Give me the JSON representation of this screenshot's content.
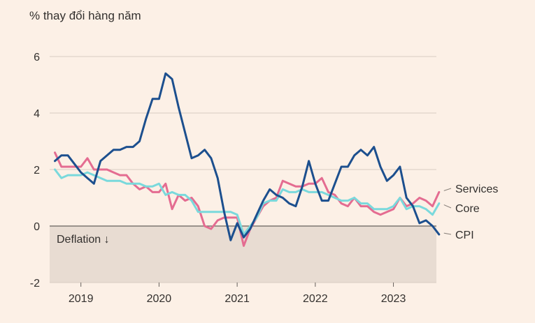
{
  "chart_data": {
    "type": "line",
    "ylabel": "% thay đổi hàng năm",
    "ylim": [
      -2,
      6
    ],
    "yticks": [
      {
        "value": 6,
        "label": "6"
      },
      {
        "value": 4,
        "label": "4"
      },
      {
        "value": 2,
        "label": "2"
      },
      {
        "value": 0,
        "label": "0"
      },
      {
        "value": -2,
        "label": "-2"
      }
    ],
    "xlim": [
      2018.6,
      2023.55
    ],
    "xticks": [
      {
        "value": 2019,
        "label": "2019"
      },
      {
        "value": 2020,
        "label": "2020"
      },
      {
        "value": 2021,
        "label": "2021"
      },
      {
        "value": 2022,
        "label": "2022"
      },
      {
        "value": 2023,
        "label": "2023"
      }
    ],
    "annotation": "Deflation ↓",
    "shaded_region": {
      "from": -2,
      "to": 0,
      "color": "#e8dcd2"
    },
    "start": 2018.667,
    "step": 0.0833333,
    "series": [
      {
        "name": "Services",
        "color": "#e46c91",
        "values": [
          2.6,
          2.1,
          2.1,
          2.1,
          2.1,
          2.4,
          2.0,
          2.0,
          2.0,
          1.9,
          1.8,
          1.8,
          1.5,
          1.3,
          1.4,
          1.2,
          1.2,
          1.5,
          0.6,
          1.1,
          0.9,
          1.0,
          0.7,
          0.0,
          -0.1,
          0.2,
          0.3,
          0.3,
          0.3,
          -0.7,
          -0.1,
          0.3,
          0.7,
          0.9,
          1.0,
          1.6,
          1.5,
          1.4,
          1.4,
          1.5,
          1.5,
          1.7,
          1.2,
          1.1,
          0.8,
          0.7,
          1.0,
          0.7,
          0.7,
          0.5,
          0.4,
          0.5,
          0.6,
          1.0,
          0.7,
          0.8,
          1.0,
          0.9,
          0.7,
          1.2
        ]
      },
      {
        "name": "Core",
        "color": "#7ad9dc",
        "values": [
          2.0,
          1.7,
          1.8,
          1.8,
          1.8,
          1.9,
          1.8,
          1.7,
          1.6,
          1.6,
          1.6,
          1.5,
          1.5,
          1.5,
          1.4,
          1.4,
          1.5,
          1.1,
          1.2,
          1.1,
          1.1,
          0.9,
          0.5,
          0.5,
          0.5,
          0.5,
          0.5,
          0.5,
          0.4,
          -0.3,
          0.0,
          0.3,
          0.8,
          0.9,
          0.9,
          1.3,
          1.2,
          1.2,
          1.3,
          1.2,
          1.2,
          1.2,
          1.1,
          1.0,
          0.9,
          0.9,
          1.0,
          0.8,
          0.8,
          0.6,
          0.6,
          0.6,
          0.7,
          1.0,
          0.6,
          0.7,
          0.7,
          0.6,
          0.4,
          0.8
        ]
      },
      {
        "name": "CPI",
        "color": "#1c4f8e",
        "values": [
          2.3,
          2.5,
          2.5,
          2.2,
          1.9,
          1.7,
          1.5,
          2.3,
          2.5,
          2.7,
          2.7,
          2.8,
          2.8,
          3.0,
          3.8,
          4.5,
          4.5,
          5.4,
          5.2,
          4.2,
          3.3,
          2.4,
          2.5,
          2.7,
          2.4,
          1.7,
          0.5,
          -0.5,
          0.1,
          -0.4,
          -0.1,
          0.4,
          0.9,
          1.3,
          1.1,
          1.0,
          0.8,
          0.7,
          1.4,
          2.3,
          1.5,
          0.9,
          0.9,
          1.5,
          2.1,
          2.1,
          2.5,
          2.7,
          2.5,
          2.8,
          2.1,
          1.6,
          1.8,
          2.1,
          1.0,
          0.7,
          0.1,
          0.2,
          0.0,
          -0.3
        ]
      }
    ],
    "legend": [
      {
        "name": "Services",
        "label": "Services",
        "value": 1.2
      },
      {
        "name": "Core",
        "label": "Core",
        "value": 0.8
      },
      {
        "name": "CPI",
        "label": "CPI",
        "value": -0.3
      }
    ]
  }
}
